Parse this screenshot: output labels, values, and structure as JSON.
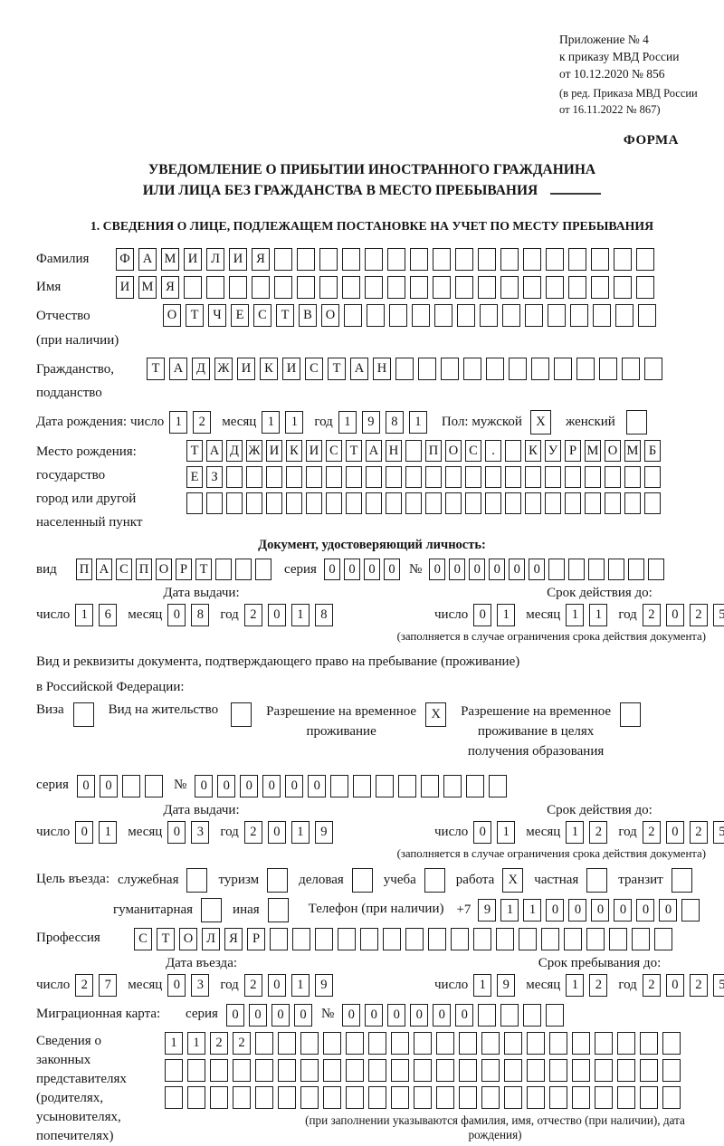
{
  "page": {
    "annex": [
      "Приложение № 4",
      "к приказу МВД России",
      "от 10.12.2020 № 856"
    ],
    "annex_note": [
      "(в ред. Приказа МВД России",
      "от 16.11.2022 № 867)"
    ],
    "forma": "ФОРМА",
    "title1": "УВЕДОМЛЕНИЕ О ПРИБЫТИИ ИНОСТРАННОГО ГРАЖДАНИНА",
    "title2": "ИЛИ ЛИЦА БЕЗ ГРАЖДАНСТВА В МЕСТО ПРЕБЫВАНИЯ",
    "section1": "1. СВЕДЕНИЯ О ЛИЦЕ, ПОДЛЕЖАЩЕМ ПОСТАНОВКЕ НА УЧЕТ ПО МЕСТУ ПРЕБЫВАНИЯ"
  },
  "labels": {
    "surname": "Фамилия",
    "name": "Имя",
    "patronymic1": "Отчество",
    "patronymic2": "(при наличии)",
    "citizenship1": "Гражданство,",
    "citizenship2": "подданство",
    "birthdate": "Дата рождения:",
    "day": "число",
    "month": "месяц",
    "year": "год",
    "sex_male": "Пол: мужской",
    "female": "женский",
    "birthplace": [
      "Место рождения:",
      "государство",
      "город или другой",
      "населенный пункт"
    ],
    "iddoc_header": "Документ, удостоверяющий личность:",
    "iddoc_type": "вид",
    "seriya": "серия",
    "nomer": "№",
    "issue_date": "Дата выдачи:",
    "valid_until": "Срок действия до:",
    "valid_note": "(заполняется в случае ограничения срока действия документа)",
    "permit_line1": "Вид и реквизиты документа, подтверждающего право на пребывание (проживание)",
    "permit_line2": "в Российской Федерации:",
    "visa": "Виза",
    "residence_permit": "Вид на жительство",
    "temp_permit": [
      "Разрешение на временное",
      "проживание"
    ],
    "edu_permit": [
      "Разрешение на временное",
      "проживание в целях",
      "получения образования"
    ],
    "purpose": "Цель въезда:",
    "phone": "Телефон (при наличии)",
    "phone_prefix": "+7",
    "profession": "Профессия",
    "entry_date": "Дата въезда:",
    "stay_until": "Срок пребывания до:",
    "migration_card": "Миграционная карта:",
    "legal_reps": [
      "Сведения о",
      "законных",
      "представителях",
      "(родителях,",
      "усыновителях,",
      "попечителях)"
    ],
    "legal_reps_note": "(при заполнении указываются фамилия, имя, отчество (при наличии), дата рождения)"
  },
  "cells": {
    "surname": {
      "text": "ФАМИЛИЯ",
      "count": 24
    },
    "name": {
      "text": "ИМЯ",
      "count": 24
    },
    "patronymic": {
      "text": "ОТЧЕСТВО",
      "count": 22
    },
    "citizenship": {
      "text": "ТАДЖИКИСТАН",
      "count": 23
    },
    "birthplace1": {
      "text": "ТАДЖИКИСТАН ПОС. КУРМОМБ",
      "count": 24
    },
    "birthplace2": {
      "text": "ЕЗ",
      "count": 24
    },
    "birthplace3": {
      "text": "",
      "count": 24
    },
    "doc_type": {
      "text": "ПАСПОРТ",
      "count": 10
    },
    "doc_seriya": {
      "text": "0000",
      "count": 4
    },
    "doc_nomer": {
      "text": "000000",
      "count": 12
    },
    "permit_seriya": {
      "text": "00",
      "count": 4
    },
    "permit_nomer": {
      "text": "000000",
      "count": 14
    },
    "phone": {
      "text": "911000000",
      "count": 10
    },
    "profession": {
      "text": "СТОЛЯР",
      "count": 24
    },
    "mig_seriya": {
      "text": "0000",
      "count": 4
    },
    "mig_nomer": {
      "text": "000000",
      "count": 10
    },
    "reps1": {
      "text": "1122",
      "count": 23
    },
    "reps2": {
      "text": "",
      "count": 23
    },
    "reps3": {
      "text": "",
      "count": 23
    }
  },
  "checks": {
    "male": {
      "text": "X",
      "count": 1
    },
    "female": {
      "text": "",
      "count": 1
    },
    "visa": {
      "text": "",
      "count": 1
    },
    "residence": {
      "text": "",
      "count": 1
    },
    "temp": {
      "text": "X",
      "count": 1
    },
    "edu": {
      "text": "",
      "count": 1
    },
    "purpose_row1": [
      {
        "name": "sluzhebnaya",
        "label": "служебная",
        "mark": ""
      },
      {
        "name": "turizm",
        "label": "туризм",
        "mark": ""
      },
      {
        "name": "delovaya",
        "label": "деловая",
        "mark": ""
      },
      {
        "name": "ucheba",
        "label": "учеба",
        "mark": ""
      },
      {
        "name": "rabota",
        "label": "работа",
        "mark": "X"
      },
      {
        "name": "chastnaya",
        "label": "частная",
        "mark": ""
      },
      {
        "name": "tranzit",
        "label": "транзит",
        "mark": ""
      }
    ],
    "purpose_row2": [
      {
        "name": "gumanitarnaya",
        "label": "гуманитарная",
        "mark": ""
      },
      {
        "name": "inaya",
        "label": "иная",
        "mark": ""
      }
    ]
  },
  "dates": {
    "birth": {
      "day": "12",
      "month": "11",
      "year": "1981"
    },
    "id_issue": {
      "day": "16",
      "month": "08",
      "year": "2018"
    },
    "id_valid": {
      "day": "01",
      "month": "11",
      "year": "2025"
    },
    "permit_issue": {
      "day": "01",
      "month": "03",
      "year": "2019"
    },
    "permit_valid": {
      "day": "01",
      "month": "12",
      "year": "2025"
    },
    "entry": {
      "day": "27",
      "month": "03",
      "year": "2019"
    },
    "stay": {
      "day": "19",
      "month": "12",
      "year": "2025"
    }
  }
}
